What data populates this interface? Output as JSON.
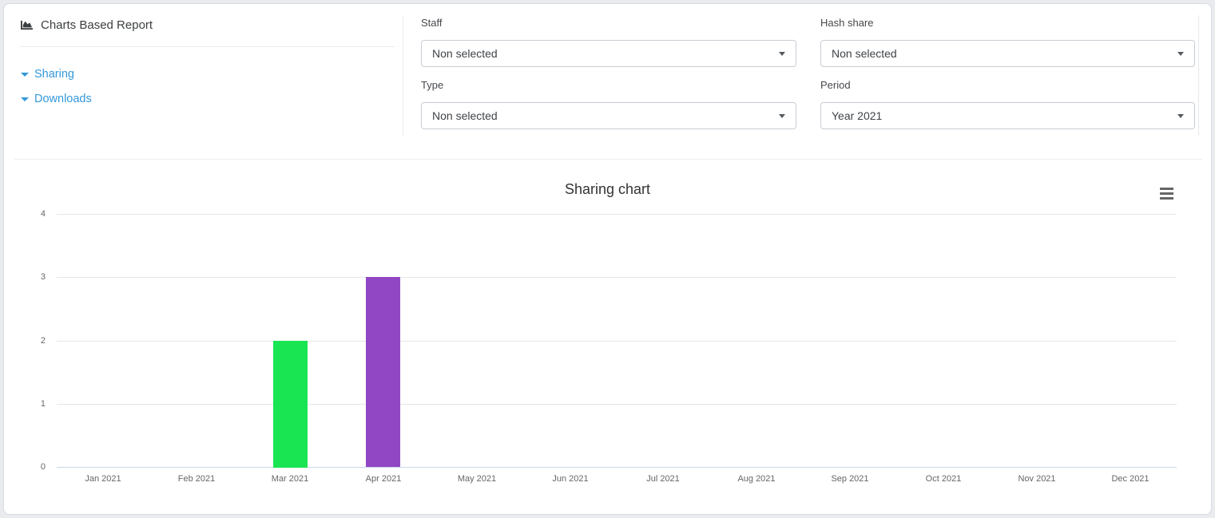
{
  "page": {
    "background_color": "#e9ebee",
    "card_background": "#ffffff"
  },
  "report_panel": {
    "icon": "area-chart-icon",
    "title": "Charts Based Report",
    "link_color": "#3498db",
    "nav_items": [
      {
        "icon": "caret-down-icon",
        "label": "Sharing"
      },
      {
        "icon": "caret-down-icon",
        "label": "Downloads"
      }
    ]
  },
  "filters": [
    {
      "label": "Staff",
      "value": "Non selected",
      "icon": "caret-down-icon"
    },
    {
      "label": "Hash share",
      "value": "Non selected",
      "icon": "caret-down-icon"
    },
    {
      "label": "Type",
      "value": "Non selected",
      "icon": "caret-down-icon"
    },
    {
      "label": "Period",
      "value": "Year 2021",
      "icon": "caret-down-icon"
    }
  ],
  "chart_toolbar": {
    "menu_icon": "hamburger-menu-icon"
  },
  "chart_data": {
    "type": "bar",
    "title": "Sharing chart",
    "categories": [
      "Jan 2021",
      "Feb 2021",
      "Mar 2021",
      "Apr 2021",
      "May 2021",
      "Jun 2021",
      "Jul 2021",
      "Aug 2021",
      "Sep 2021",
      "Oct 2021",
      "Nov 2021",
      "Dec 2021"
    ],
    "values": [
      null,
      null,
      2,
      3,
      null,
      null,
      null,
      null,
      null,
      null,
      null,
      null
    ],
    "point_colors": [
      null,
      null,
      "#19E553",
      "#9147C4",
      null,
      null,
      null,
      null,
      null,
      null,
      null,
      null
    ],
    "xlabel": "",
    "ylabel": "",
    "ylim": [
      0,
      4
    ],
    "yticks": [
      0,
      1,
      2,
      3,
      4
    ],
    "grid": true,
    "legend": false,
    "gridline_color": "#e6e6e6",
    "axis_line_color": "#ccd6eb",
    "label_color": "#666666"
  }
}
